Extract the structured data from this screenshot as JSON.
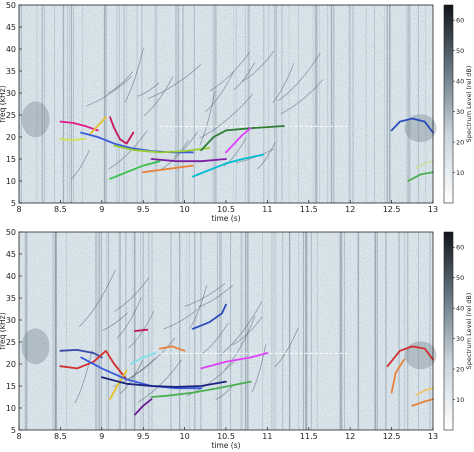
{
  "chart_data": [
    {
      "type": "heatmap",
      "title": "",
      "xlabel": "time (s)",
      "ylabel": "freq (kHz)",
      "xlim": [
        8,
        13
      ],
      "ylim": [
        5,
        50
      ],
      "xticks": [
        "8",
        "8.5",
        "9",
        "9.5",
        "10",
        "10.5",
        "11",
        "11.5",
        "12",
        "12.5",
        "13"
      ],
      "yticks": [
        "5",
        "10",
        "15",
        "20",
        "25",
        "30",
        "35",
        "40",
        "45",
        "50"
      ],
      "colorbar": {
        "label": "Spectrum Level (rel dB)",
        "ticks": [
          "10",
          "20",
          "30",
          "40",
          "50",
          "60"
        ],
        "range": [
          0,
          65
        ]
      },
      "series": [
        {
          "color": "#e41a8c",
          "x": [
            8.5,
            8.65,
            8.8,
            8.95
          ],
          "y": [
            23.5,
            23.2,
            22.5,
            21.5
          ]
        },
        {
          "color": "#d4e157",
          "x": [
            8.5,
            8.65,
            8.8
          ],
          "y": [
            19.5,
            19.3,
            19.6
          ]
        },
        {
          "color": "#e6c229",
          "x": [
            8.85,
            8.95,
            9.05
          ],
          "y": [
            20.5,
            22.5,
            24.5
          ]
        },
        {
          "color": "#c2185b",
          "x": [
            9.1,
            9.15,
            9.22,
            9.3,
            9.38
          ],
          "y": [
            24.5,
            22.0,
            19.5,
            18.5,
            21.0
          ]
        },
        {
          "color": "#3b5bdb",
          "x": [
            8.75,
            8.95,
            9.15,
            9.35,
            9.6,
            9.85,
            10.1
          ],
          "y": [
            21.0,
            20.0,
            18.5,
            17.5,
            16.8,
            16.5,
            16.5
          ]
        },
        {
          "color": "#9acd32",
          "x": [
            9.15,
            9.4,
            9.7,
            10.0,
            10.3
          ],
          "y": [
            18.0,
            17.0,
            16.5,
            16.8,
            17.5
          ]
        },
        {
          "color": "#7b1fa2",
          "x": [
            9.6,
            9.9,
            10.2,
            10.5
          ],
          "y": [
            15.0,
            14.5,
            14.5,
            15.0
          ]
        },
        {
          "color": "#39c14a",
          "x": [
            9.1,
            9.3,
            9.5,
            9.7
          ],
          "y": [
            10.5,
            12.0,
            13.5,
            14.5
          ]
        },
        {
          "color": "#e8813a",
          "x": [
            9.5,
            9.7,
            9.9,
            10.1
          ],
          "y": [
            12.0,
            12.5,
            13.0,
            13.5
          ]
        },
        {
          "color": "#00bcd4",
          "x": [
            10.1,
            10.3,
            10.5,
            10.7,
            10.95
          ],
          "y": [
            11.0,
            12.5,
            14.0,
            15.0,
            16.0
          ]
        },
        {
          "color": "#2e7d32",
          "x": [
            10.2,
            10.35,
            10.5,
            10.8,
            11.2
          ],
          "y": [
            17.0,
            20.0,
            21.5,
            22.0,
            22.5
          ]
        },
        {
          "color": "#e040fb",
          "x": [
            10.5,
            10.6,
            10.7,
            10.8
          ],
          "y": [
            16.5,
            18.5,
            20.5,
            22.0
          ]
        },
        {
          "color": "#2b4cbd",
          "x": [
            12.5,
            12.6,
            12.75,
            12.9,
            13.0
          ],
          "y": [
            21.5,
            23.5,
            24.2,
            23.5,
            21.0
          ]
        },
        {
          "color": "#4caf50",
          "x": [
            12.7,
            12.85,
            13.0
          ],
          "y": [
            10.0,
            11.5,
            12.0
          ]
        },
        {
          "color": "#c5e1a5",
          "x": [
            12.8,
            12.9,
            13.0
          ],
          "y": [
            13.0,
            14.0,
            14.5
          ]
        }
      ]
    },
    {
      "type": "heatmap",
      "title": "",
      "xlabel": "time (s)",
      "ylabel": "freq (kHz)",
      "xlim": [
        8,
        13
      ],
      "ylim": [
        5,
        50
      ],
      "xticks": [
        "8",
        "8.5",
        "9",
        "9.5",
        "10",
        "10.5",
        "11",
        "11.5",
        "12",
        "12.5",
        "13"
      ],
      "yticks": [
        "5",
        "10",
        "15",
        "20",
        "25",
        "30",
        "35",
        "40",
        "45",
        "50"
      ],
      "colorbar": {
        "label": "Spectrum Level (rel dB)",
        "ticks": [
          "10",
          "20",
          "30",
          "40",
          "50",
          "60"
        ],
        "range": [
          0,
          65
        ]
      },
      "series": [
        {
          "color": "#3949ab",
          "x": [
            8.5,
            8.7,
            8.9,
            9.0
          ],
          "y": [
            23.0,
            23.2,
            22.5,
            21.5
          ]
        },
        {
          "color": "#d32f2f",
          "x": [
            8.5,
            8.7,
            8.9,
            9.05,
            9.15,
            9.3
          ],
          "y": [
            19.5,
            19.0,
            20.5,
            23.0,
            20.0,
            16.5
          ]
        },
        {
          "color": "#e6c229",
          "x": [
            9.3,
            9.2,
            9.1
          ],
          "y": [
            18.5,
            15.5,
            12.0
          ]
        },
        {
          "color": "#3b5bdb",
          "x": [
            8.75,
            9.0,
            9.3,
            9.6,
            9.9,
            10.2
          ],
          "y": [
            21.5,
            19.0,
            16.5,
            15.0,
            14.5,
            14.5
          ]
        },
        {
          "color": "#1a237e",
          "x": [
            9.0,
            9.3,
            9.6,
            9.9,
            10.2,
            10.5
          ],
          "y": [
            17.0,
            15.5,
            15.0,
            14.8,
            15.0,
            16.0
          ]
        },
        {
          "color": "#c2185b",
          "x": [
            9.4,
            9.55
          ],
          "y": [
            27.5,
            27.8
          ]
        },
        {
          "color": "#80deea",
          "x": [
            9.35,
            9.5,
            9.65
          ],
          "y": [
            20.0,
            21.5,
            22.5
          ]
        },
        {
          "color": "#e8813a",
          "x": [
            9.7,
            9.85,
            10.0
          ],
          "y": [
            23.5,
            24.0,
            23.0
          ]
        },
        {
          "color": "#2b4cbd",
          "x": [
            10.1,
            10.3,
            10.45,
            10.5
          ],
          "y": [
            28.0,
            29.5,
            31.5,
            33.5
          ]
        },
        {
          "color": "#e040fb",
          "x": [
            10.2,
            10.5,
            10.8,
            11.0
          ],
          "y": [
            19.0,
            20.5,
            21.5,
            22.5
          ]
        },
        {
          "color": "#4caf50",
          "x": [
            9.6,
            9.8,
            10.1,
            10.4,
            10.8
          ],
          "y": [
            12.5,
            12.8,
            13.5,
            14.5,
            16.0
          ]
        },
        {
          "color": "#6a1b9a",
          "x": [
            9.4,
            9.5,
            9.6
          ],
          "y": [
            8.5,
            10.5,
            12.0
          ]
        },
        {
          "color": "#e8813a",
          "x": [
            12.5,
            12.55,
            12.65
          ],
          "y": [
            13.5,
            18.0,
            21.0
          ]
        },
        {
          "color": "#d32f2f",
          "x": [
            12.45,
            12.6,
            12.75,
            12.9,
            13.0
          ],
          "y": [
            19.5,
            23.0,
            24.0,
            23.5,
            21.0
          ]
        },
        {
          "color": "#e8813a",
          "x": [
            12.75,
            12.9,
            13.0
          ],
          "y": [
            10.5,
            11.5,
            12.0
          ]
        },
        {
          "color": "#f0c36d",
          "x": [
            12.8,
            12.9,
            13.0
          ],
          "y": [
            13.0,
            14.0,
            14.5
          ]
        }
      ]
    }
  ]
}
